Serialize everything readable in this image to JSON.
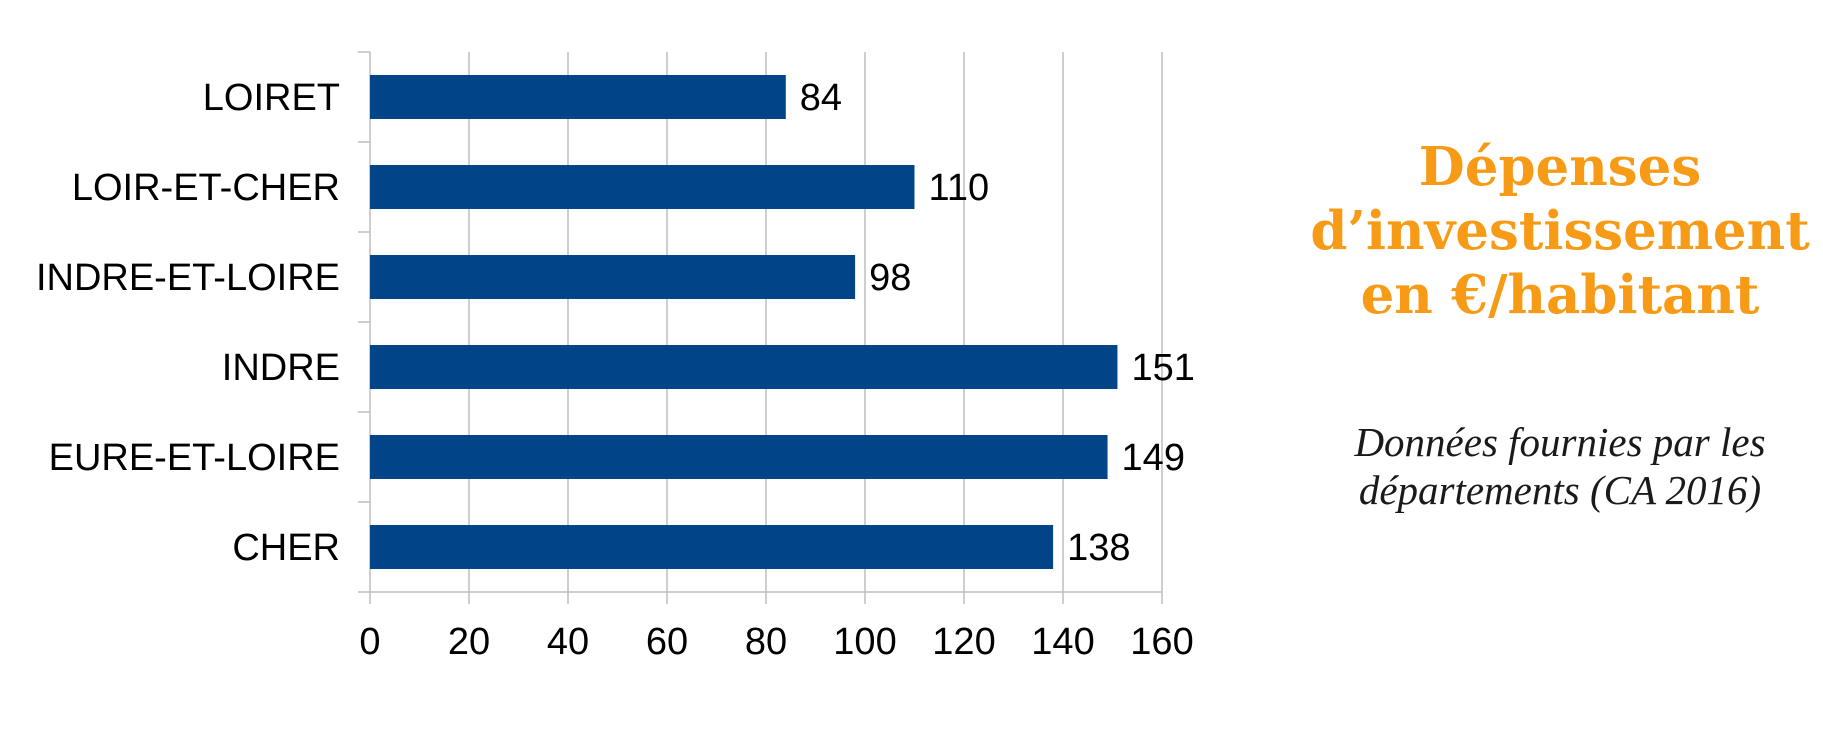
{
  "colors": {
    "bar": "#014588",
    "title": "#F79A16",
    "grid": "#BDBDBD",
    "text": "#000000"
  },
  "side_panel": {
    "title_lines": [
      "Dépenses",
      "d’investissement",
      "en €/habitant"
    ],
    "subtitle_lines": [
      "Données fournies par les",
      "départements (CA 2016)"
    ]
  },
  "chart_data": {
    "type": "bar",
    "orientation": "horizontal",
    "categories": [
      "LOIRET",
      "LOIR-ET-CHER",
      "INDRE-ET-LOIRE",
      "INDRE",
      "EURE-ET-LOIRE",
      "CHER"
    ],
    "values": [
      84,
      110,
      98,
      151,
      149,
      138
    ],
    "data_labels": [
      "84",
      "110",
      "98",
      "151",
      "149",
      "138"
    ],
    "xlim": [
      0,
      160
    ],
    "xticks": [
      "0",
      "20",
      "40",
      "60",
      "80",
      "100",
      "120",
      "140",
      "160"
    ],
    "xtick_values": [
      0,
      20,
      40,
      60,
      80,
      100,
      120,
      140,
      160
    ],
    "grid": "vertical",
    "legend": "none"
  }
}
